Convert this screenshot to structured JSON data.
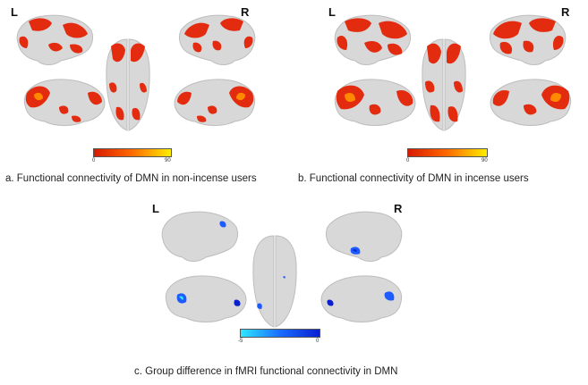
{
  "panels": [
    {
      "id": "a",
      "left_label": "L",
      "right_label": "R",
      "colorbar_min": "0",
      "colorbar_max": "90",
      "caption": "a. Functional connectivity of DMN in non-incense users",
      "colormap": [
        "#d81a00",
        "#ff6a00",
        "#ffee00"
      ],
      "blob_color": "#e32b10"
    },
    {
      "id": "b",
      "left_label": "L",
      "right_label": "R",
      "colorbar_min": "0",
      "colorbar_max": "90",
      "caption": "b. Functional connectivity of DMN in incense users",
      "colormap": [
        "#d81a00",
        "#ff6a00",
        "#ffee00"
      ],
      "blob_color": "#e32b10"
    },
    {
      "id": "c",
      "left_label": "L",
      "right_label": "R",
      "colorbar_min": "-5",
      "colorbar_max": "0",
      "caption": "c. Group difference in fMRI functional connectivity in DMN",
      "colormap": [
        "#2ee8ff",
        "#1a6dff",
        "#0a1fd0"
      ],
      "blob_color": "#1d5bff"
    }
  ]
}
